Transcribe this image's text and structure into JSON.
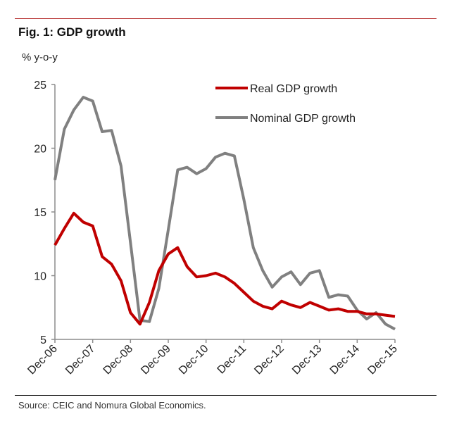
{
  "header": {
    "title": "Fig. 1: GDP growth"
  },
  "footer": {
    "source": "Source: CEIC and Nomura Global Economics."
  },
  "chart_data": {
    "type": "line",
    "title": "Fig. 1: GDP growth",
    "ylabel": "% y-o-y",
    "xlabel": "",
    "ylim": [
      5,
      25
    ],
    "yticks": [
      5,
      10,
      15,
      20,
      25
    ],
    "xtick_labels": [
      "Dec-06",
      "Dec-07",
      "Dec-08",
      "Dec-09",
      "Dec-10",
      "Dec-11",
      "Dec-12",
      "Dec-13",
      "Dec-14",
      "Dec-15"
    ],
    "frequency": "quarterly",
    "x": [
      "Dec-06",
      "Mar-07",
      "Jun-07",
      "Sep-07",
      "Dec-07",
      "Mar-08",
      "Jun-08",
      "Sep-08",
      "Dec-08",
      "Mar-09",
      "Jun-09",
      "Sep-09",
      "Dec-09",
      "Mar-10",
      "Jun-10",
      "Sep-10",
      "Dec-10",
      "Mar-11",
      "Jun-11",
      "Sep-11",
      "Dec-11",
      "Mar-12",
      "Jun-12",
      "Sep-12",
      "Dec-12",
      "Mar-13",
      "Jun-13",
      "Sep-13",
      "Dec-13",
      "Mar-14",
      "Jun-14",
      "Sep-14",
      "Dec-14",
      "Mar-15",
      "Jun-15",
      "Sep-15",
      "Dec-15"
    ],
    "grid": false,
    "legend_position": "top-right",
    "series": [
      {
        "name": "Real GDP growth",
        "color": "#c00000",
        "values": [
          12.4,
          13.7,
          14.9,
          14.2,
          13.9,
          11.5,
          10.9,
          9.6,
          7.1,
          6.2,
          7.9,
          10.4,
          11.7,
          12.2,
          10.7,
          9.9,
          10.0,
          10.2,
          9.9,
          9.4,
          8.7,
          8.0,
          7.6,
          7.4,
          8.0,
          7.7,
          7.5,
          7.9,
          7.6,
          7.3,
          7.4,
          7.2,
          7.2,
          7.0,
          7.0,
          6.9,
          6.8
        ]
      },
      {
        "name": "Nominal GDP growth",
        "color": "#808080",
        "values": [
          17.5,
          21.5,
          23.0,
          24.0,
          23.7,
          21.3,
          21.4,
          18.6,
          12.6,
          6.5,
          6.4,
          9.0,
          13.6,
          18.3,
          18.5,
          18.0,
          18.4,
          19.3,
          19.6,
          19.4,
          16.0,
          12.2,
          10.4,
          9.1,
          9.9,
          10.3,
          9.3,
          10.2,
          10.4,
          8.3,
          8.5,
          8.4,
          7.3,
          6.6,
          7.1,
          6.2,
          5.8
        ]
      }
    ]
  }
}
